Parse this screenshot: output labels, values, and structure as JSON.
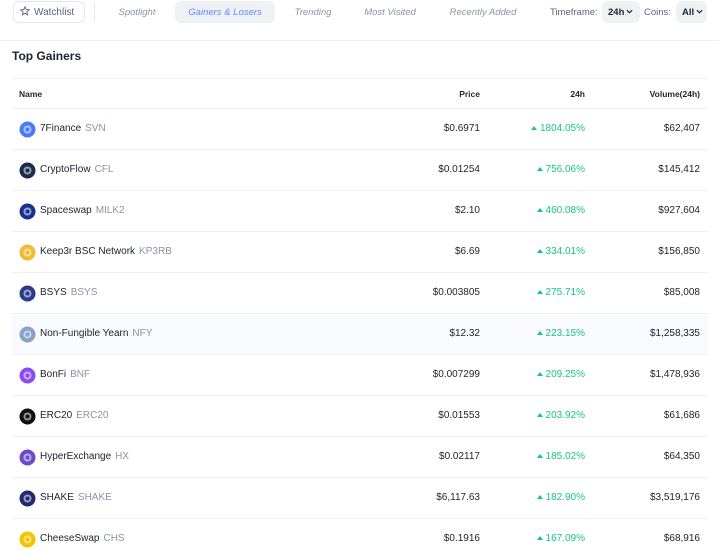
{
  "nav": {
    "watchlist_label": "Watchlist",
    "tabs": [
      {
        "label": "Spotlight",
        "active": false
      },
      {
        "label": "Gainers & Losers",
        "active": true
      },
      {
        "label": "Trending",
        "active": false
      },
      {
        "label": "Most Visited",
        "active": false
      },
      {
        "label": "Recently Added",
        "active": false
      }
    ],
    "timeframe_label": "Timeframe:",
    "timeframe_value": "24h",
    "coins_label": "Coins:",
    "coins_value": "All"
  },
  "section_title": "Top Gainers",
  "table": {
    "headers": {
      "name": "Name",
      "price": "Price",
      "change": "24h",
      "volume": "Volume(24h)"
    },
    "rows": [
      {
        "name": "7Finance",
        "symbol": "SVN",
        "price": "$0.6971",
        "change": "1804.05%",
        "volume": "$62,407",
        "icon": "7finance-icon",
        "color": "#4a7bf7"
      },
      {
        "name": "CryptoFlow",
        "symbol": "CFL",
        "price": "$0.01254",
        "change": "756.06%",
        "volume": "$145,412",
        "icon": "cryptoflow-icon",
        "color": "#1a2b4c"
      },
      {
        "name": "Spaceswap",
        "symbol": "MILK2",
        "price": "$2.10",
        "change": "460.08%",
        "volume": "$927,604",
        "icon": "spaceswap-icon",
        "color": "#1b2f8f"
      },
      {
        "name": "Keep3r BSC Network",
        "symbol": "KP3RB",
        "price": "$6.69",
        "change": "334.01%",
        "volume": "$156,850",
        "icon": "keep3r-icon",
        "color": "#f3ba2f"
      },
      {
        "name": "BSYS",
        "symbol": "BSYS",
        "price": "$0.003805",
        "change": "275.71%",
        "volume": "$85,008",
        "icon": "bsys-icon",
        "color": "#2b3a8c"
      },
      {
        "name": "Non-Fungible Yearn",
        "symbol": "NFY",
        "price": "$12.32",
        "change": "223.15%",
        "volume": "$1,258,335",
        "icon": "nfy-icon",
        "color": "#8aa2c8"
      },
      {
        "name": "BonFi",
        "symbol": "BNF",
        "price": "$0.007299",
        "change": "209.25%",
        "volume": "$1,478,936",
        "icon": "bonfi-icon",
        "color": "#8a4cf0"
      },
      {
        "name": "ERC20",
        "symbol": "ERC20",
        "price": "$0.01553",
        "change": "203.92%",
        "volume": "$61,686",
        "icon": "erc20-icon",
        "color": "#111111"
      },
      {
        "name": "HyperExchange",
        "symbol": "HX",
        "price": "$0.02117",
        "change": "185.02%",
        "volume": "$64,350",
        "icon": "hyperexchange-icon",
        "color": "#6b4ac9"
      },
      {
        "name": "SHAKE",
        "symbol": "SHAKE",
        "price": "$6,117.63",
        "change": "182.90%",
        "volume": "$3,519,176",
        "icon": "shake-icon",
        "color": "#1e2b6e"
      },
      {
        "name": "CheeseSwap",
        "symbol": "CHS",
        "price": "$0.1916",
        "change": "167.09%",
        "volume": "$68,916",
        "icon": "cheeseswap-icon",
        "color": "#f5c400"
      }
    ]
  },
  "colors": {
    "accent": "#6188ff",
    "positive": "#16c784"
  }
}
